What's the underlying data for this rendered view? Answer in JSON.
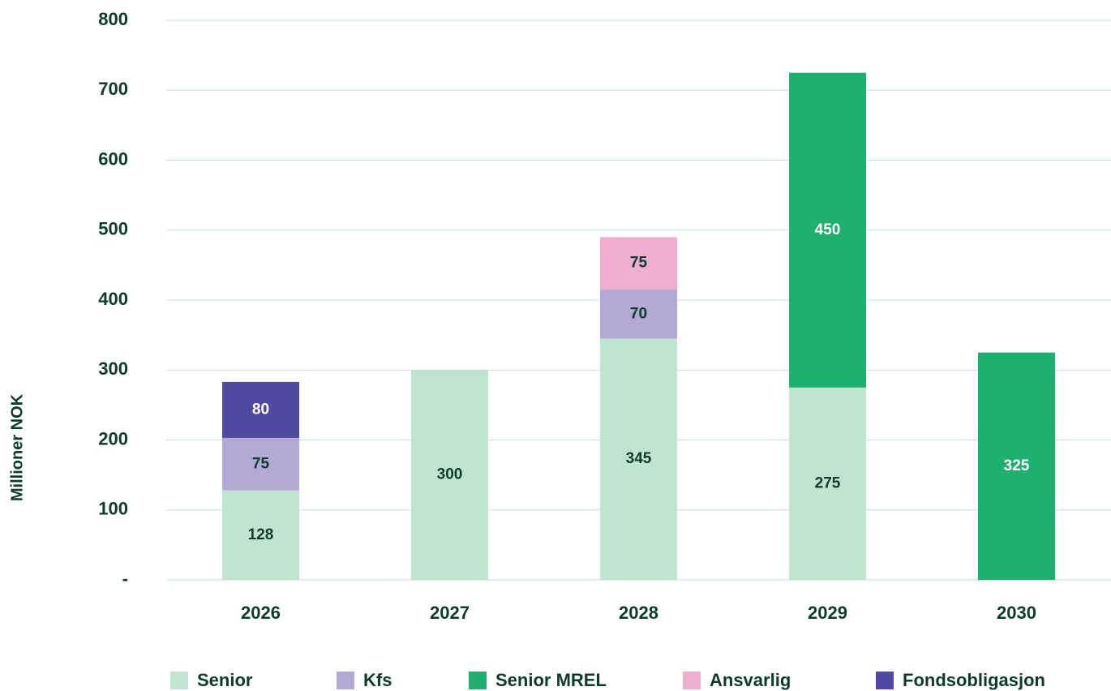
{
  "chart_data": {
    "type": "bar",
    "stacked": true,
    "y_label": "Millioner NOK",
    "categories": [
      "2026",
      "2027",
      "2028",
      "2029",
      "2030"
    ],
    "series": [
      {
        "name": "Senior",
        "color": "#c0e4d0",
        "values": [
          128,
          300,
          345,
          275,
          null
        ]
      },
      {
        "name": "Kfs",
        "color": "#b4a9d4",
        "values": [
          75,
          null,
          70,
          null,
          null
        ]
      },
      {
        "name": "Senior MREL",
        "color": "#1faf6e",
        "values": [
          null,
          null,
          null,
          450,
          325
        ]
      },
      {
        "name": "Ansvarlig",
        "color": "#eeaed0",
        "values": [
          null,
          null,
          75,
          null,
          null
        ]
      },
      {
        "name": "Fondsobligasjon",
        "color": "#4f4aa0",
        "values": [
          80,
          null,
          null,
          null,
          null
        ]
      }
    ],
    "ylim": [
      0,
      800
    ],
    "yticks": [
      {
        "value": 0,
        "label": "-"
      },
      100,
      200,
      300,
      400,
      500,
      600,
      700,
      800
    ],
    "grid": true,
    "legend": "bottom"
  }
}
